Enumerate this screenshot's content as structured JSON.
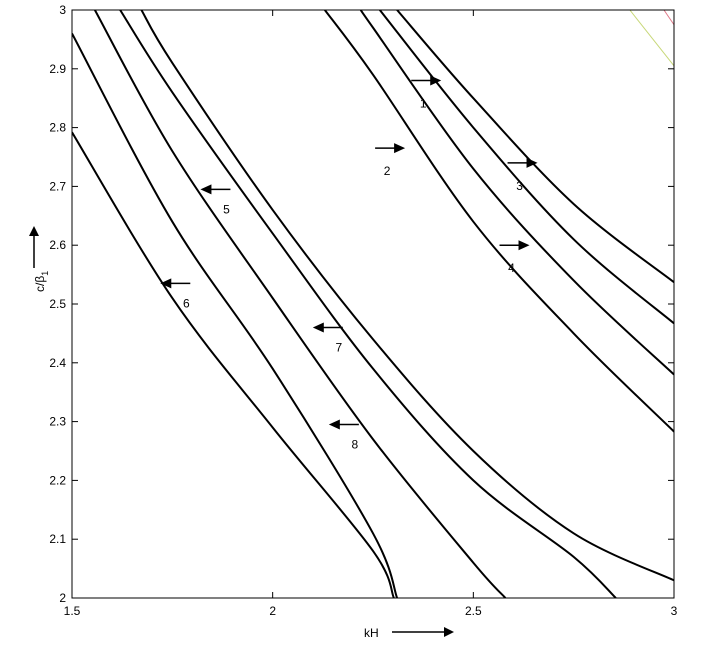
{
  "chart_data": {
    "type": "line",
    "title": "",
    "xlabel": "kH",
    "ylabel": "c/β",
    "ylabel_subscript": "1",
    "xlim": [
      1.5,
      3.0
    ],
    "ylim": [
      2.0,
      3.0
    ],
    "grid": false,
    "xticks": [
      1.5,
      2,
      2.5,
      3
    ],
    "xtick_labels": [
      "1.5",
      "2",
      "2.5",
      "3"
    ],
    "yticks": [
      2,
      2.1,
      2.2,
      2.3,
      2.4,
      2.5,
      2.6,
      2.7,
      2.8,
      2.9,
      3
    ],
    "ytick_labels": [
      "2",
      "2.1",
      "2.2",
      "2.3",
      "2.4",
      "2.5",
      "2.6",
      "2.7",
      "2.8",
      "2.9",
      "3"
    ],
    "series": [
      {
        "x": [
          1.5,
          1.75,
          2.0,
          2.25,
          2.302
        ],
        "y": [
          2.792,
          2.51,
          2.29,
          2.08,
          2.0
        ]
      },
      {
        "x": [
          1.5,
          1.75,
          2.0,
          2.25,
          2.31
        ],
        "y": [
          2.96,
          2.64,
          2.39,
          2.11,
          2.0
        ]
      },
      {
        "x": [
          1.557,
          1.75,
          2.0,
          2.25,
          2.5,
          2.58
        ],
        "y": [
          3.0,
          2.76,
          2.51,
          2.27,
          2.06,
          2.0
        ]
      },
      {
        "x": [
          1.62,
          1.75,
          2.0,
          2.25,
          2.5,
          2.75,
          2.855
        ],
        "y": [
          3.0,
          2.86,
          2.62,
          2.39,
          2.2,
          2.07,
          2.0
        ]
      },
      {
        "x": [
          1.673,
          1.75,
          2.0,
          2.25,
          2.5,
          2.75,
          3.0
        ],
        "y": [
          3.0,
          2.91,
          2.66,
          2.44,
          2.25,
          2.11,
          2.03
        ]
      },
      {
        "x": [
          2.13,
          2.25,
          2.5,
          2.75,
          3.0
        ],
        "y": [
          3.0,
          2.89,
          2.64,
          2.45,
          2.283
        ]
      },
      {
        "x": [
          2.22,
          2.25,
          2.5,
          2.75,
          3.0
        ],
        "y": [
          3.0,
          2.97,
          2.73,
          2.54,
          2.38
        ]
      },
      {
        "x": [
          2.267,
          2.5,
          2.75,
          3.0
        ],
        "y": [
          3.0,
          2.8,
          2.61,
          2.467
        ]
      },
      {
        "x": [
          2.31,
          2.5,
          2.75,
          3.0
        ],
        "y": [
          3.0,
          2.85,
          2.67,
          2.537
        ]
      }
    ],
    "faint_lines": [
      {
        "color": "#c8d87a",
        "x": [
          2.89,
          3.0
        ],
        "y": [
          3.0,
          2.905
        ]
      },
      {
        "color": "#e07a8a",
        "x": [
          2.975,
          3.0
        ],
        "y": [
          3.0,
          2.975
        ]
      }
    ],
    "annotations": [
      {
        "label": "1",
        "direction": "right",
        "arrow_x": 2.42,
        "arrow_y": 2.88
      },
      {
        "label": "2",
        "direction": "right",
        "arrow_x": 2.33,
        "arrow_y": 2.765
      },
      {
        "label": "3",
        "direction": "right",
        "arrow_x": 2.66,
        "arrow_y": 2.74
      },
      {
        "label": "4",
        "direction": "right",
        "arrow_x": 2.64,
        "arrow_y": 2.6
      },
      {
        "label": "5",
        "direction": "left",
        "arrow_x": 1.82,
        "arrow_y": 2.695
      },
      {
        "label": "6",
        "direction": "left",
        "arrow_x": 1.72,
        "arrow_y": 2.535
      },
      {
        "label": "7",
        "direction": "left",
        "arrow_x": 2.1,
        "arrow_y": 2.46
      },
      {
        "label": "8",
        "direction": "left",
        "arrow_x": 2.14,
        "arrow_y": 2.295
      }
    ]
  }
}
